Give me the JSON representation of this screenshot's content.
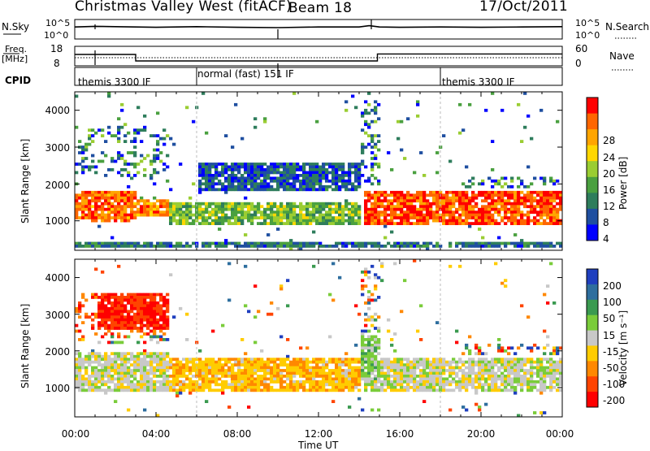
{
  "header": {
    "title": "Christmas Valley West (fitACF)",
    "beam": "Beam 18",
    "date": "17/Oct/2011"
  },
  "top_panels": {
    "nsky_label": "N.Sky",
    "nsky_ticks": [
      "10^5",
      "10^0"
    ],
    "nsearch_label": "N.Search",
    "nsearch_ticks": [
      "10^5",
      "10^0"
    ],
    "freq_label": "Freq.",
    "freq_unit": "[MHz]",
    "freq_ticks": [
      "18",
      "8"
    ],
    "nave_label": "Nave",
    "nave_ticks": [
      "60",
      "0"
    ],
    "cpid_label": "CPID",
    "cpid_segments": [
      {
        "label": "themis 3300 IF",
        "start_h": 0,
        "end_h": 6
      },
      {
        "label": "normal (fast) 151 IF",
        "start_h": 6,
        "end_h": 18
      },
      {
        "label": "themis 3300 IF",
        "start_h": 18,
        "end_h": 24
      }
    ]
  },
  "axes": {
    "xlabel": "Time UT",
    "xticks": [
      "00:00",
      "04:00",
      "08:00",
      "12:00",
      "16:00",
      "20:00",
      "00:00"
    ],
    "ylabel": "Slant Range [km]",
    "yticks": [
      "4000",
      "3000",
      "2000",
      "1000"
    ]
  },
  "colorbars": {
    "power": {
      "label": "Power [dB]",
      "ticks": [
        "28",
        "24",
        "20",
        "16",
        "12",
        "8",
        "4"
      ],
      "colors": [
        "#0000ff",
        "#1f4fa0",
        "#2e7d5c",
        "#4aa03f",
        "#9acd32",
        "#ffd700",
        "#ffa500",
        "#ff6600",
        "#ff0000"
      ]
    },
    "velocity": {
      "label": "Velocity [m s⁻¹]",
      "ticks": [
        "200",
        "100",
        "50",
        "15",
        "-15",
        "-50",
        "-100",
        "-200"
      ],
      "colors": [
        "#1f3fbf",
        "#2e6e9e",
        "#3a9a50",
        "#7acc3a",
        "#c8c8c8",
        "#ffcc00",
        "#ff8800",
        "#ff4400",
        "#ff0000"
      ]
    }
  },
  "chart_data": [
    {
      "type": "line",
      "title": "N.Sky / N.Search",
      "x_unit": "hours UT",
      "xlim": [
        0,
        24
      ],
      "ylim_log10": [
        0,
        5
      ],
      "series": [
        {
          "x": [
            0,
            1,
            2,
            4,
            6,
            8,
            10,
            12,
            14,
            14.5,
            15,
            16,
            18,
            20,
            22,
            24
          ],
          "y_log10": [
            3.2,
            3.4,
            3.3,
            3.1,
            3.3,
            3.1,
            3.0,
            3.2,
            3.2,
            3.6,
            3.2,
            3.1,
            3.2,
            3.1,
            3.2,
            3.3
          ]
        }
      ]
    },
    {
      "type": "line",
      "title": "Freq. / Nave",
      "x_unit": "hours UT",
      "xlim": [
        0,
        24
      ],
      "ylim": [
        8,
        18
      ],
      "series": [
        {
          "x": [
            0,
            3,
            3,
            14.9,
            14.9,
            24
          ],
          "y": [
            14,
            14,
            10,
            10,
            14.3,
            14.3
          ]
        },
        {
          "x": [
            0,
            24
          ],
          "y": [
            12,
            12
          ]
        }
      ]
    },
    {
      "type": "heatmap",
      "title": "Power [dB]",
      "x_unit": "hours UT",
      "y_unit": "km",
      "xlim": [
        0,
        24
      ],
      "ylim": [
        200,
        4500
      ],
      "features": [
        {
          "t": [
            0,
            3
          ],
          "range": [
            1000,
            1800
          ],
          "power_db": 26
        },
        {
          "t": [
            3,
            4.5
          ],
          "range": [
            1100,
            1600
          ],
          "power_db": 24
        },
        {
          "t": [
            4.5,
            14
          ],
          "range": [
            900,
            1500
          ],
          "power_db": 14
        },
        {
          "t": [
            6,
            14
          ],
          "range": [
            1800,
            2600
          ],
          "power_db": 6
        },
        {
          "t": [
            14.2,
            24
          ],
          "range": [
            900,
            1800
          ],
          "power_db": 28
        },
        {
          "t": [
            0,
            24
          ],
          "range": [
            250,
            400
          ],
          "power_db": 8
        }
      ]
    },
    {
      "type": "heatmap",
      "title": "Velocity [m s⁻¹]",
      "x_unit": "hours UT",
      "y_unit": "km",
      "xlim": [
        0,
        24
      ],
      "ylim": [
        200,
        4500
      ],
      "features": [
        {
          "t": [
            0,
            4.5
          ],
          "range": [
            900,
            2000
          ],
          "velocity": 0
        },
        {
          "t": [
            1,
            4.5
          ],
          "range": [
            2600,
            3600
          ],
          "velocity": -200
        },
        {
          "t": [
            4.5,
            14
          ],
          "range": [
            900,
            1800
          ],
          "velocity": -40
        },
        {
          "t": [
            14.2,
            24
          ],
          "range": [
            900,
            1800
          ],
          "velocity": 0
        },
        {
          "t": [
            14,
            15
          ],
          "range": [
            1200,
            2400
          ],
          "velocity": 30
        }
      ]
    }
  ]
}
